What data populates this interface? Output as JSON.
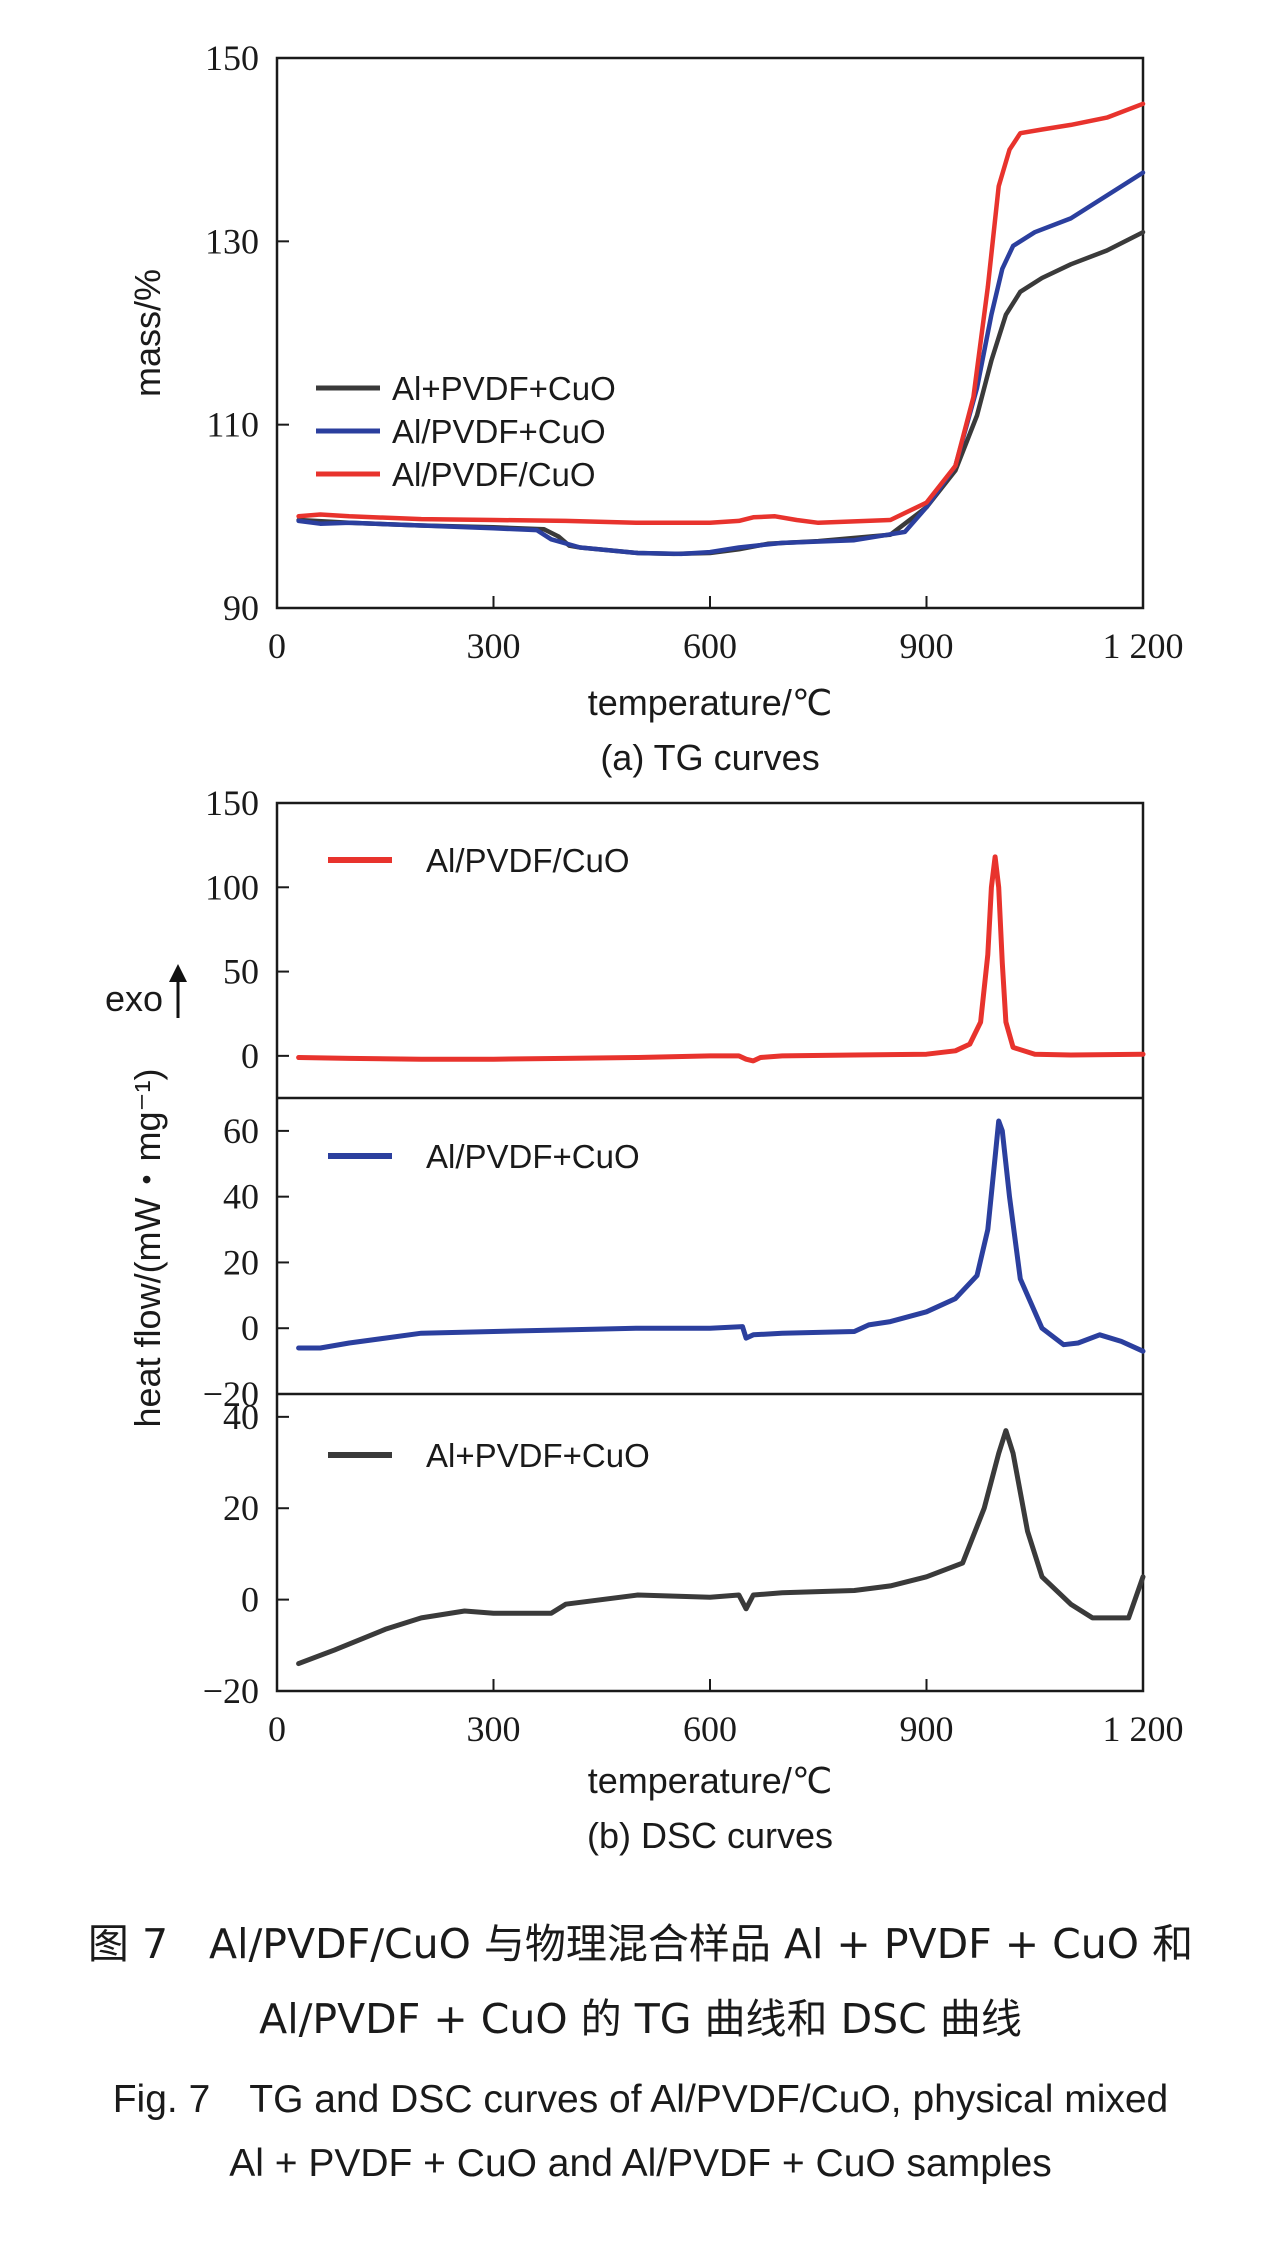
{
  "figure": {
    "caption_cn_line1": "图 7　Al/PVDF/CuO 与物理混合样品 Al + PVDF + CuO 和",
    "caption_cn_line2": "Al/PVDF + CuO 的 TG 曲线和 DSC 曲线",
    "caption_en_line1": "Fig. 7　TG and DSC curves of Al/PVDF/CuO, physical mixed",
    "caption_en_line2": "Al + PVDF + CuO and Al/PVDF + CuO samples"
  },
  "colors": {
    "black": "#3a3a3a",
    "blue": "#2b3f9e",
    "red": "#e8332d"
  },
  "chart_data": [
    {
      "type": "line",
      "subtitle": "(a) TG curves",
      "xlabel": "temperature/℃",
      "ylabel": "mass/%",
      "xlim": [
        0,
        1200
      ],
      "ylim": [
        90,
        150
      ],
      "xticks": [
        0,
        300,
        600,
        900,
        1200
      ],
      "xtick_labels": [
        "0",
        "300",
        "600",
        "900",
        "1 200"
      ],
      "yticks": [
        90,
        110,
        130,
        150
      ],
      "ytick_labels": [
        "90",
        "110",
        "130",
        "150"
      ],
      "grid": false,
      "legend_position": "middle-left",
      "series": [
        {
          "name": "Al+PVDF+CuO",
          "color": "#3a3a3a",
          "x": [
            30,
            100,
            200,
            300,
            370,
            390,
            405,
            420,
            500,
            550,
            600,
            640,
            680,
            750,
            850,
            900,
            940,
            970,
            990,
            1010,
            1030,
            1060,
            1100,
            1150,
            1200
          ],
          "y": [
            99.6,
            99.3,
            99.0,
            98.8,
            98.6,
            97.8,
            96.8,
            96.6,
            96.0,
            95.9,
            96.0,
            96.4,
            97.0,
            97.3,
            98.0,
            101.0,
            105.0,
            111.0,
            117.0,
            122.0,
            124.5,
            126.0,
            127.5,
            129.0,
            131.0
          ]
        },
        {
          "name": "Al/PVDF+CuO",
          "color": "#2b3f9e",
          "x": [
            30,
            60,
            100,
            200,
            300,
            360,
            380,
            420,
            500,
            560,
            600,
            640,
            700,
            800,
            870,
            900,
            940,
            970,
            990,
            1005,
            1020,
            1050,
            1100,
            1150,
            1200
          ],
          "y": [
            99.5,
            99.2,
            99.3,
            99.0,
            98.7,
            98.5,
            97.5,
            96.6,
            96.0,
            95.9,
            96.1,
            96.6,
            97.1,
            97.4,
            98.3,
            101.0,
            105.5,
            114.0,
            122.0,
            127.0,
            129.5,
            131.0,
            132.5,
            135.0,
            137.5
          ]
        },
        {
          "name": "Al/PVDF/CuO",
          "color": "#e8332d",
          "x": [
            30,
            60,
            100,
            200,
            300,
            400,
            500,
            600,
            640,
            660,
            690,
            720,
            750,
            850,
            900,
            940,
            965,
            985,
            1000,
            1015,
            1030,
            1060,
            1100,
            1150,
            1200
          ],
          "y": [
            100.0,
            100.2,
            100.0,
            99.7,
            99.6,
            99.5,
            99.3,
            99.3,
            99.5,
            99.9,
            100.0,
            99.6,
            99.3,
            99.6,
            101.5,
            105.5,
            113.0,
            125.0,
            136.0,
            140.0,
            141.8,
            142.2,
            142.7,
            143.5,
            145.0
          ]
        }
      ]
    },
    {
      "type": "line",
      "subtitle": "(b) DSC curves",
      "xlabel": "temperature/℃",
      "ylabel": "heat flow/(mW・mg⁻¹)",
      "exo_label": "exo",
      "xlim": [
        0,
        1200
      ],
      "xticks": [
        0,
        300,
        600,
        900,
        1200
      ],
      "xtick_labels": [
        "0",
        "300",
        "600",
        "900",
        "1 200"
      ],
      "grid": false,
      "panels": [
        {
          "name": "Al/PVDF/CuO",
          "color": "#e8332d",
          "ylim": [
            -25,
            150
          ],
          "yticks": [
            0,
            50,
            100,
            150
          ],
          "ytick_labels": [
            "0",
            "50",
            "100",
            "150"
          ],
          "x": [
            30,
            100,
            200,
            300,
            400,
            500,
            600,
            640,
            650,
            660,
            670,
            700,
            800,
            900,
            940,
            960,
            975,
            985,
            990,
            995,
            1000,
            1005,
            1010,
            1020,
            1050,
            1100,
            1200
          ],
          "y": [
            -1,
            -1.5,
            -2,
            -2,
            -1.5,
            -1,
            0,
            0,
            -2,
            -3,
            -1,
            0,
            0.5,
            1,
            3,
            7,
            20,
            60,
            100,
            118,
            100,
            55,
            20,
            5,
            1,
            0.5,
            1
          ]
        },
        {
          "name": "Al/PVDF+CuO",
          "color": "#2b3f9e",
          "ylim": [
            -20,
            70
          ],
          "yticks": [
            -20,
            0,
            20,
            40,
            60
          ],
          "ytick_labels": [
            "−20",
            "0",
            "20",
            "40",
            "60"
          ],
          "x": [
            30,
            60,
            100,
            150,
            200,
            300,
            400,
            500,
            600,
            645,
            650,
            660,
            700,
            800,
            820,
            850,
            900,
            940,
            970,
            985,
            995,
            1000,
            1005,
            1015,
            1030,
            1060,
            1090,
            1110,
            1140,
            1170,
            1200
          ],
          "y": [
            -6,
            -6,
            -4.5,
            -3,
            -1.5,
            -1,
            -0.5,
            0,
            0,
            0.5,
            -3,
            -2,
            -1.5,
            -1,
            1,
            2,
            5,
            9,
            16,
            30,
            52,
            63,
            60,
            40,
            15,
            0,
            -5,
            -4.5,
            -2,
            -4,
            -7
          ]
        },
        {
          "name": "Al+PVDF+CuO",
          "color": "#3a3a3a",
          "ylim": [
            -20,
            45
          ],
          "yticks": [
            -20,
            0,
            20,
            40
          ],
          "ytick_labels": [
            "−20",
            "0",
            "20",
            "40"
          ],
          "x": [
            30,
            80,
            150,
            200,
            260,
            300,
            380,
            400,
            500,
            600,
            640,
            650,
            660,
            700,
            800,
            850,
            900,
            950,
            980,
            1000,
            1010,
            1020,
            1040,
            1060,
            1100,
            1130,
            1180,
            1200
          ],
          "y": [
            -14,
            -11,
            -6.5,
            -4,
            -2.5,
            -3,
            -3,
            -1,
            1,
            0.5,
            1,
            -2,
            1,
            1.5,
            2,
            3,
            5,
            8,
            20,
            32,
            37,
            32,
            15,
            5,
            -1,
            -4,
            -4,
            5
          ]
        }
      ]
    }
  ]
}
